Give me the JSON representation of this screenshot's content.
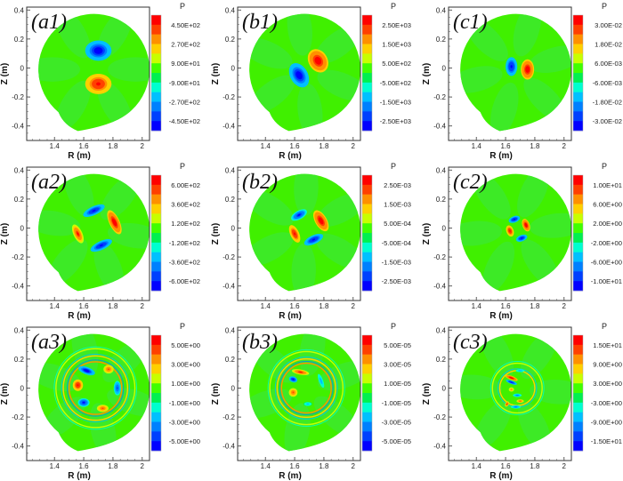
{
  "chart_data": [
    {
      "id": "a1",
      "type": "heatmap",
      "panel_label": "(a1)",
      "xlabel": "R (m)",
      "ylabel": "Z (m)",
      "xlim": [
        1.21,
        2.05
      ],
      "ylim": [
        -0.5,
        0.42
      ],
      "xticks": [
        "1.4",
        "1.6",
        "1.8",
        "2"
      ],
      "yticks": [
        "0.4",
        "0.2",
        "0",
        "-0.2",
        "-0.4"
      ],
      "colorbar": {
        "title": "P",
        "range": [
          -450,
          450
        ],
        "labels": [
          "4.50E+02",
          "2.70E+02",
          "9.00E+01",
          "-9.00E+01",
          "-2.70E+02",
          "-4.50E+02"
        ]
      },
      "structures": [
        {
          "R": 1.7,
          "Z": 0.12,
          "sign": -1,
          "amplitude": 1.0,
          "rx": 0.09,
          "rz": 0.07,
          "angle": 0
        },
        {
          "R": 1.7,
          "Z": -0.11,
          "sign": 1,
          "amplitude": 0.95,
          "rx": 0.09,
          "rz": 0.07,
          "angle": 0
        }
      ]
    },
    {
      "id": "b1",
      "type": "heatmap",
      "panel_label": "(b1)",
      "xlabel": "R (m)",
      "ylabel": "Z (m)",
      "xlim": [
        1.21,
        2.05
      ],
      "ylim": [
        -0.5,
        0.42
      ],
      "xticks": [
        "1.4",
        "1.6",
        "1.8",
        "2"
      ],
      "yticks": [
        "0.4",
        "0.2",
        "0",
        "-0.2",
        "-0.4"
      ],
      "colorbar": {
        "title": "P",
        "range": [
          -2500,
          2500
        ],
        "labels": [
          "2.50E+03",
          "1.50E+03",
          "5.00E+02",
          "-5.00E+02",
          "-1.50E+03",
          "-2.50E+03"
        ]
      },
      "structures": [
        {
          "R": 1.76,
          "Z": 0.05,
          "sign": 1,
          "amplitude": 1.0,
          "rx": 0.065,
          "rz": 0.085,
          "angle": -30
        },
        {
          "R": 1.63,
          "Z": -0.05,
          "sign": -1,
          "amplitude": 1.0,
          "rx": 0.06,
          "rz": 0.09,
          "angle": -30
        }
      ]
    },
    {
      "id": "c1",
      "type": "heatmap",
      "panel_label": "(c1)",
      "xlabel": "R (m)",
      "ylabel": "Z (m)",
      "xlim": [
        1.21,
        2.05
      ],
      "ylim": [
        -0.5,
        0.42
      ],
      "xticks": [
        "1.4",
        "1.6",
        "1.8",
        "2"
      ],
      "yticks": [
        "0.4",
        "0.2",
        "0",
        "-0.2",
        "-0.4"
      ],
      "colorbar": {
        "title": "P",
        "range": [
          -0.03,
          0.03
        ],
        "labels": [
          "3.00E-02",
          "1.80E-02",
          "6.00E-03",
          "-6.00E-03",
          "-1.80E-02",
          "-3.00E-02"
        ]
      },
      "structures": [
        {
          "R": 1.75,
          "Z": -0.01,
          "sign": 1,
          "amplitude": 1.0,
          "rx": 0.045,
          "rz": 0.07,
          "angle": 0
        },
        {
          "R": 1.64,
          "Z": 0.01,
          "sign": -1,
          "amplitude": 0.95,
          "rx": 0.04,
          "rz": 0.065,
          "angle": 0
        }
      ]
    },
    {
      "id": "a2",
      "type": "heatmap",
      "panel_label": "(a2)",
      "xlabel": "R (m)",
      "ylabel": "Z (m)",
      "xlim": [
        1.21,
        2.05
      ],
      "ylim": [
        -0.5,
        0.42
      ],
      "xticks": [
        "1.4",
        "1.6",
        "1.8",
        "2"
      ],
      "yticks": [
        "0.4",
        "0.2",
        "0",
        "-0.2",
        "-0.4"
      ],
      "colorbar": {
        "title": "P",
        "range": [
          -600,
          600
        ],
        "labels": [
          "6.00E+02",
          "3.60E+02",
          "1.20E+02",
          "-1.20E+02",
          "-3.60E+02",
          "-6.00E+02"
        ]
      },
      "structures": [
        {
          "R": 1.81,
          "Z": 0.04,
          "sign": 1,
          "amplitude": 1.0,
          "rx": 0.035,
          "rz": 0.09,
          "angle": -25
        },
        {
          "R": 1.56,
          "Z": -0.04,
          "sign": 1,
          "amplitude": 0.85,
          "rx": 0.03,
          "rz": 0.07,
          "angle": -25
        },
        {
          "R": 1.67,
          "Z": 0.12,
          "sign": -1,
          "amplitude": 0.9,
          "rx": 0.08,
          "rz": 0.03,
          "angle": -25
        },
        {
          "R": 1.72,
          "Z": -0.12,
          "sign": -1,
          "amplitude": 0.95,
          "rx": 0.08,
          "rz": 0.03,
          "angle": -25
        }
      ]
    },
    {
      "id": "b2",
      "type": "heatmap",
      "panel_label": "(b2)",
      "xlabel": "R (m)",
      "ylabel": "Z (m)",
      "xlim": [
        1.21,
        2.05
      ],
      "ylim": [
        -0.5,
        0.42
      ],
      "xticks": [
        "1.4",
        "1.6",
        "1.8",
        "2"
      ],
      "yticks": [
        "0.4",
        "0.2",
        "0",
        "-0.2",
        "-0.4"
      ],
      "colorbar": {
        "title": "P",
        "range": [
          -0.0025,
          0.0025
        ],
        "labels": [
          "2.50E-03",
          "1.50E-03",
          "5.00E-04",
          "-5.00E-04",
          "-1.50E-03",
          "-2.50E-03"
        ]
      },
      "structures": [
        {
          "R": 1.78,
          "Z": 0.05,
          "sign": 1,
          "amplitude": 1.0,
          "rx": 0.04,
          "rz": 0.08,
          "angle": -30
        },
        {
          "R": 1.6,
          "Z": -0.04,
          "sign": 1,
          "amplitude": 0.9,
          "rx": 0.03,
          "rz": 0.065,
          "angle": -25
        },
        {
          "R": 1.63,
          "Z": 0.09,
          "sign": -1,
          "amplitude": 0.85,
          "rx": 0.06,
          "rz": 0.03,
          "angle": -30
        },
        {
          "R": 1.73,
          "Z": -0.08,
          "sign": -1,
          "amplitude": 0.95,
          "rx": 0.07,
          "rz": 0.03,
          "angle": -25
        }
      ]
    },
    {
      "id": "c2",
      "type": "heatmap",
      "panel_label": "(c2)",
      "xlabel": "R (m)",
      "ylabel": "Z (m)",
      "xlim": [
        1.21,
        2.05
      ],
      "ylim": [
        -0.5,
        0.42
      ],
      "xticks": [
        "1.4",
        "1.6",
        "1.8",
        "2"
      ],
      "yticks": [
        "0.4",
        "0.2",
        "0",
        "-0.2",
        "-0.4"
      ],
      "colorbar": {
        "title": "P",
        "range": [
          -10,
          10
        ],
        "labels": [
          "1.00E+01",
          "6.00E+00",
          "2.00E+00",
          "-2.00E+00",
          "-6.00E+00",
          "-1.00E+01"
        ]
      },
      "structures": [
        {
          "R": 1.74,
          "Z": 0.02,
          "sign": 1,
          "amplitude": 1.0,
          "rx": 0.025,
          "rz": 0.045,
          "angle": -20
        },
        {
          "R": 1.63,
          "Z": -0.02,
          "sign": 1,
          "amplitude": 0.95,
          "rx": 0.025,
          "rz": 0.04,
          "angle": -20
        },
        {
          "R": 1.66,
          "Z": 0.06,
          "sign": -1,
          "amplitude": 0.9,
          "rx": 0.04,
          "rz": 0.022,
          "angle": -20
        },
        {
          "R": 1.71,
          "Z": -0.07,
          "sign": -1,
          "amplitude": 0.9,
          "rx": 0.04,
          "rz": 0.022,
          "angle": -20
        }
      ]
    },
    {
      "id": "a3",
      "type": "heatmap",
      "panel_label": "(a3)",
      "xlabel": "R (m)",
      "ylabel": "Z (m)",
      "xlim": [
        1.21,
        2.05
      ],
      "ylim": [
        -0.5,
        0.42
      ],
      "xticks": [
        "1.4",
        "1.6",
        "1.8",
        "2"
      ],
      "yticks": [
        "0.4",
        "0.2",
        "0",
        "-0.2",
        "-0.4"
      ],
      "colorbar": {
        "title": "P",
        "range": [
          -5,
          5
        ],
        "labels": [
          "5.00E+00",
          "3.00E+00",
          "1.00E+00",
          "-1.00E+00",
          "-3.00E+00",
          "-5.00E+00"
        ]
      },
      "structures": [
        {
          "R": 1.56,
          "Z": 0.02,
          "sign": 1,
          "amplitude": 0.95,
          "rx": 0.035,
          "rz": 0.04,
          "angle": 0
        },
        {
          "R": 1.77,
          "Z": 0.13,
          "sign": 1,
          "amplitude": 0.7,
          "rx": 0.035,
          "rz": 0.03,
          "angle": 0
        },
        {
          "R": 1.73,
          "Z": -0.14,
          "sign": 1,
          "amplitude": 0.7,
          "rx": 0.04,
          "rz": 0.025,
          "angle": 0
        },
        {
          "R": 1.62,
          "Z": 0.12,
          "sign": -1,
          "amplitude": 1.0,
          "rx": 0.06,
          "rz": 0.025,
          "angle": 20
        },
        {
          "R": 1.6,
          "Z": -0.1,
          "sign": -1,
          "amplitude": 0.85,
          "rx": 0.04,
          "rz": 0.03,
          "angle": 0
        },
        {
          "R": 1.83,
          "Z": 0.0,
          "sign": -1,
          "amplitude": 0.7,
          "rx": 0.025,
          "rz": 0.05,
          "angle": 0
        }
      ],
      "rings": [
        {
          "radius": 0.18,
          "amplitude": 0.6
        },
        {
          "radius": 0.22,
          "amplitude": 0.35
        },
        {
          "radius": 0.27,
          "amplitude": 0.2
        }
      ]
    },
    {
      "id": "b3",
      "type": "heatmap",
      "panel_label": "(b3)",
      "xlabel": "R (m)",
      "ylabel": "Z (m)",
      "xlim": [
        1.21,
        2.05
      ],
      "ylim": [
        -0.5,
        0.42
      ],
      "xticks": [
        "1.4",
        "1.6",
        "1.8",
        "2"
      ],
      "yticks": [
        "0.4",
        "0.2",
        "0",
        "-0.2",
        "-0.4"
      ],
      "colorbar": {
        "title": "P",
        "range": [
          -5e-05,
          5e-05
        ],
        "labels": [
          "5.00E-05",
          "3.00E-05",
          "1.00E-05",
          "-1.00E-05",
          "-3.00E-05",
          "-5.00E-05"
        ]
      },
      "structures": [
        {
          "R": 1.64,
          "Z": 0.11,
          "sign": 1,
          "amplitude": 0.85,
          "rx": 0.06,
          "rz": 0.018,
          "angle": 10
        },
        {
          "R": 1.59,
          "Z": -0.03,
          "sign": 1,
          "amplitude": 0.75,
          "rx": 0.03,
          "rz": 0.03,
          "angle": 0
        },
        {
          "R": 1.59,
          "Z": 0.06,
          "sign": -1,
          "amplitude": 0.95,
          "rx": 0.03,
          "rz": 0.02,
          "angle": 20
        },
        {
          "R": 1.78,
          "Z": 0.05,
          "sign": -1,
          "amplitude": 0.5,
          "rx": 0.015,
          "rz": 0.05,
          "angle": -20
        },
        {
          "R": 1.69,
          "Z": -0.11,
          "sign": -1,
          "amplitude": 0.4,
          "rx": 0.03,
          "rz": 0.015,
          "angle": 0
        }
      ],
      "rings": [
        {
          "radius": 0.17,
          "amplitude": 0.55
        },
        {
          "radius": 0.2,
          "amplitude": 0.35
        },
        {
          "radius": 0.25,
          "amplitude": 0.2
        }
      ]
    },
    {
      "id": "c3",
      "type": "heatmap",
      "panel_label": "(c3)",
      "xlabel": "R (m)",
      "ylabel": "Z (m)",
      "xlim": [
        1.21,
        2.05
      ],
      "ylim": [
        -0.5,
        0.42
      ],
      "xticks": [
        "1.4",
        "1.6",
        "1.8",
        "2"
      ],
      "yticks": [
        "0.4",
        "0.2",
        "0",
        "-0.2",
        "-0.4"
      ],
      "colorbar": {
        "title": "P",
        "range": [
          -15,
          15
        ],
        "labels": [
          "1.50E+01",
          "9.00E+00",
          "3.00E+00",
          "-3.00E+00",
          "-9.00E+00",
          "-1.50E+01"
        ]
      },
      "structures": [
        {
          "R": 1.64,
          "Z": 0.07,
          "sign": 1,
          "amplitude": 1.0,
          "rx": 0.045,
          "rz": 0.014,
          "angle": 20
        },
        {
          "R": 1.64,
          "Z": -0.01,
          "sign": 1,
          "amplitude": 0.6,
          "rx": 0.018,
          "rz": 0.015,
          "angle": 0
        },
        {
          "R": 1.7,
          "Z": -0.09,
          "sign": 1,
          "amplitude": 0.7,
          "rx": 0.025,
          "rz": 0.012,
          "angle": 0
        },
        {
          "R": 1.61,
          "Z": -0.11,
          "sign": 1,
          "amplitude": 0.85,
          "rx": 0.012,
          "rz": 0.02,
          "angle": 30
        },
        {
          "R": 1.64,
          "Z": 0.04,
          "sign": -1,
          "amplitude": 0.9,
          "rx": 0.04,
          "rz": 0.012,
          "angle": 20
        },
        {
          "R": 1.68,
          "Z": -0.05,
          "sign": -1,
          "amplitude": 0.6,
          "rx": 0.03,
          "rz": 0.012,
          "angle": 0
        },
        {
          "R": 1.67,
          "Z": -0.13,
          "sign": -1,
          "amplitude": 0.6,
          "rx": 0.035,
          "rz": 0.012,
          "angle": 0
        },
        {
          "R": 1.7,
          "Z": 0.12,
          "sign": -1,
          "amplitude": 0.5,
          "rx": 0.03,
          "rz": 0.01,
          "angle": 0
        }
      ],
      "rings": [
        {
          "radius": 0.12,
          "amplitude": 0.35
        },
        {
          "radius": 0.17,
          "amplitude": 0.2
        }
      ]
    }
  ],
  "plasma_boundary": {
    "center_R": 1.67,
    "center_Z": -0.01,
    "radius": 0.38,
    "cusp_R": 1.56,
    "cusp_Z": -0.435
  },
  "colormap": [
    "#0000ff",
    "#0040ff",
    "#0080ff",
    "#00c0ff",
    "#00ffd0",
    "#00f050",
    "#40ff00",
    "#c8ff00",
    "#ffd000",
    "#ff9000",
    "#ff4000",
    "#ff0000"
  ],
  "background_field": "#40f000"
}
